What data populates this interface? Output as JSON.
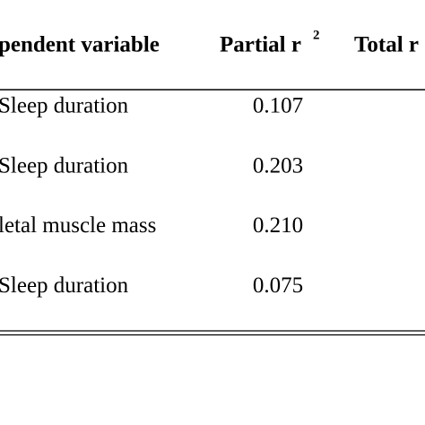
{
  "table": {
    "header": [
      {
        "text": "pendent variable"
      },
      {
        "text": "Partial r",
        "sup": "2"
      },
      {
        "text": "Total r"
      }
    ],
    "rows": [
      [
        "Sleep duration",
        "0.107"
      ],
      [
        "Sleep duration",
        "0.203"
      ],
      [
        "letal muscle mass",
        "0.210"
      ],
      [
        "Sleep duration",
        "0.075"
      ]
    ]
  }
}
